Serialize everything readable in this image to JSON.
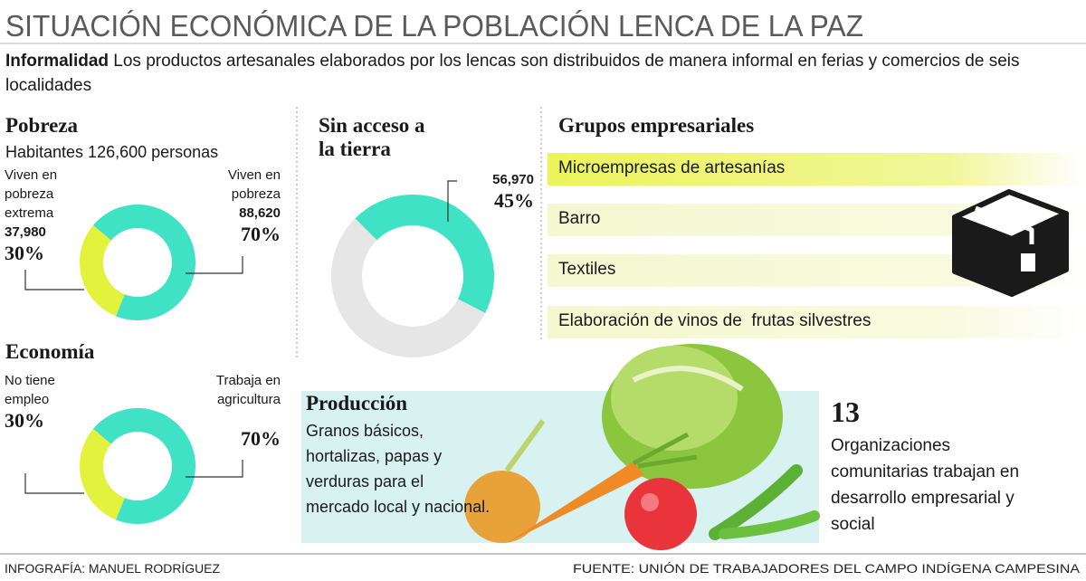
{
  "header": {
    "title": "SITUACIÓN ECONÓMICA DE LA POBLACIÓN LENCA DE LA PAZ",
    "lead_label": "Informalidad",
    "lead": "Los productos artesanales elaborados por los lencas son distribuidos de manera informal en ferias y comercios de seis localidades"
  },
  "chart_data": [
    {
      "type": "donut",
      "title": "Pobreza",
      "subtitle": "Habitantes 126,600 personas",
      "categories": [
        "Viven en pobreza extrema",
        "Viven en pobreza"
      ],
      "count_labels": [
        "37,980",
        "88,620"
      ],
      "values": [
        30,
        70
      ],
      "value_labels": [
        "30%",
        "70%"
      ],
      "colors": [
        "#e3f23c",
        "#3fe2c4"
      ]
    },
    {
      "type": "donut",
      "title": "Sin acceso a la tierra",
      "categories": [
        null,
        null
      ],
      "count_labels": [
        "56,970",
        null
      ],
      "values": [
        45,
        55
      ],
      "value_labels": [
        "45%",
        null
      ],
      "colors": [
        "#3fe2c4",
        "#e6e6e6"
      ]
    },
    {
      "type": "donut",
      "title": "Economía",
      "categories": [
        "No tiene empleo",
        "Trabaja en agricultura"
      ],
      "count_labels": [
        null,
        null
      ],
      "values": [
        30,
        70
      ],
      "value_labels": [
        "30%",
        "70%"
      ],
      "colors": [
        "#e3f23c",
        "#3fe2c4"
      ]
    }
  ],
  "groups": {
    "title": "Grupos empresariales",
    "items": [
      "Microempresas de artesanías",
      "Barro",
      "Textiles",
      "Elaboración de vinos de  frutas silvestres"
    ]
  },
  "production": {
    "title": "Producción",
    "text": "Granos básicos, hortalizas, papas y verduras para el mercado local y nacional."
  },
  "organizations": {
    "count": 13,
    "text": "Organizaciones comunitarias trabajan en desarrollo empresarial y social"
  },
  "footer": {
    "credit": "INFOGRAFÍA: MANUEL RODRÍGUEZ",
    "source": "FUENTE: UNIÓN DE TRABAJADORES DEL CAMPO INDÍGENA CAMPESINA"
  }
}
